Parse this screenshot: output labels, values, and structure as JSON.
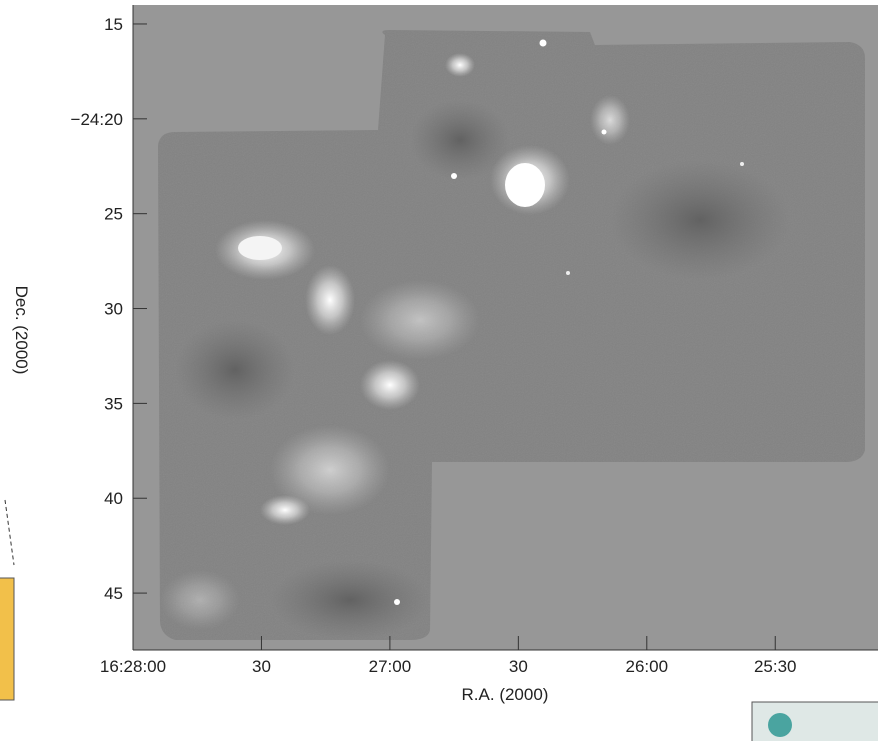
{
  "chart_data": {
    "type": "image",
    "xlabel": "R.A. (2000)",
    "ylabel": "Dec. (2000)",
    "xlim": [
      180,
      6
    ],
    "ylim": [
      48,
      14
    ],
    "xticks": [
      {
        "value": 180,
        "label": "16:28:00"
      },
      {
        "value": 150,
        "label": "30"
      },
      {
        "value": 120,
        "label": "27:00"
      },
      {
        "value": 90,
        "label": "30"
      },
      {
        "value": 60,
        "label": "26:00"
      },
      {
        "value": 30,
        "label": "25:30"
      }
    ],
    "yticks": [
      15,
      {
        "value": 20,
        "label": "−24:20"
      },
      25,
      30,
      35,
      40,
      45
    ]
  }
}
